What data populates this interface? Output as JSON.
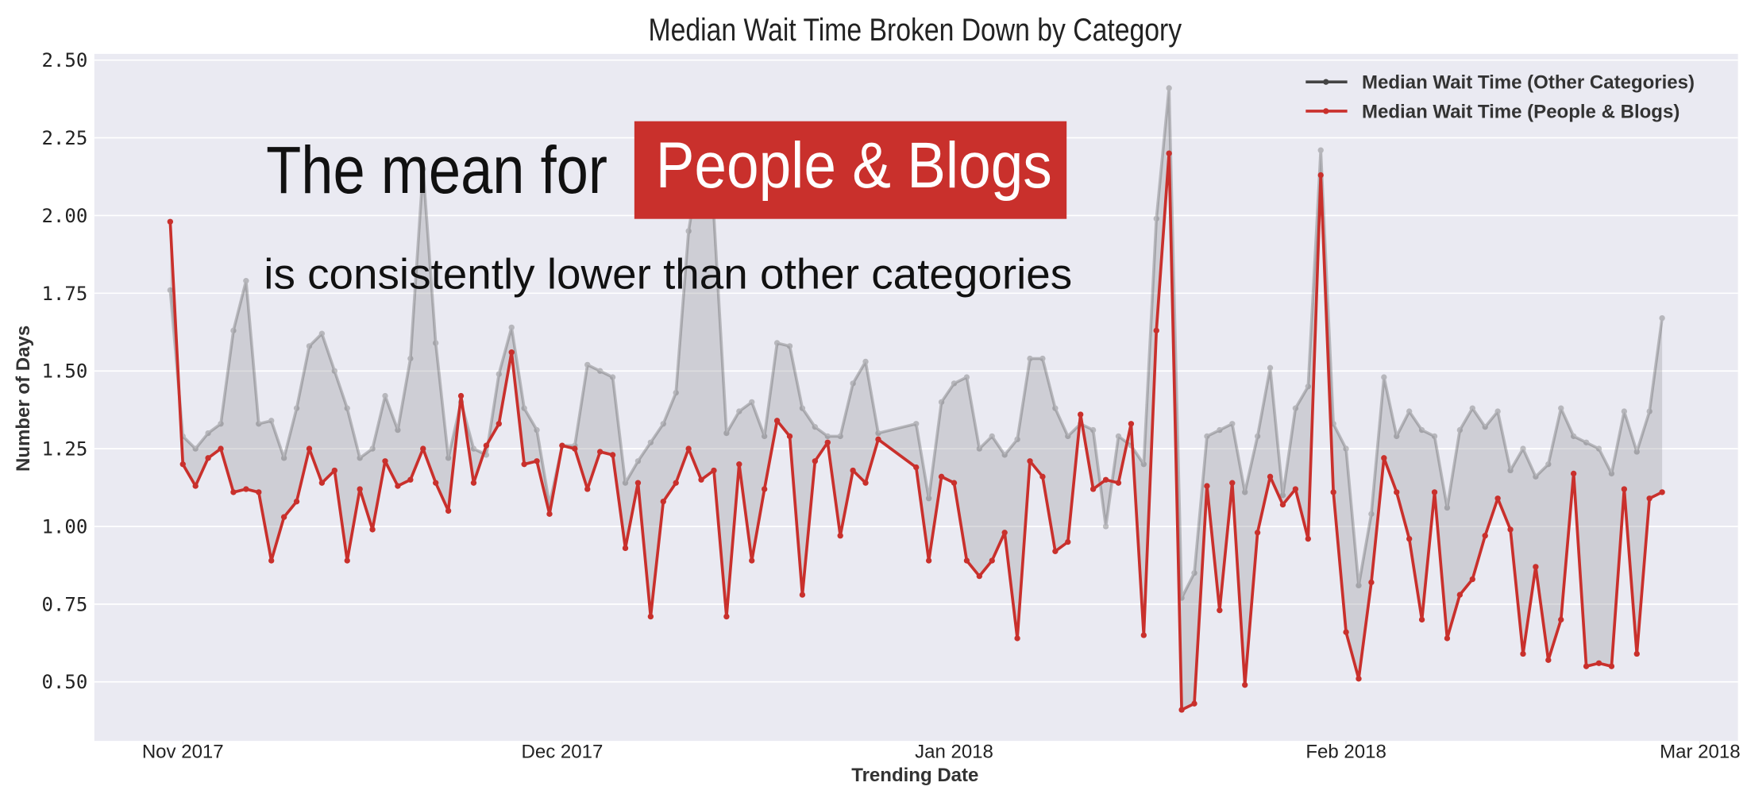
{
  "chart_data": {
    "type": "line",
    "title": "Median Wait Time Broken Down by Category",
    "x_label": "Trending Date",
    "y_label": "Number of Days",
    "annotation_lead": "The mean for",
    "annotation_highlight": "People & Blogs",
    "annotation_tail": "is consistently lower than other categories",
    "highlight_color": "#c9302c",
    "x": [
      -1,
      0,
      1,
      2,
      3,
      4,
      5,
      6,
      7,
      8,
      9,
      10,
      11,
      12,
      13,
      14,
      15,
      16,
      17,
      18,
      19,
      20,
      21,
      22,
      23,
      24,
      25,
      26,
      27,
      28,
      29,
      30,
      31,
      32,
      33,
      34,
      35,
      36,
      37,
      38,
      39,
      40,
      41,
      42,
      43,
      44,
      45,
      46,
      47,
      48,
      49,
      50,
      51,
      52,
      53,
      54,
      55,
      58,
      59,
      60,
      61,
      62,
      63,
      64,
      65,
      66,
      67,
      68,
      69,
      70,
      71,
      72,
      73,
      74,
      75,
      76,
      77,
      78,
      79,
      80,
      81,
      82,
      83,
      84,
      85,
      86,
      87,
      88,
      89,
      90,
      91,
      92,
      93,
      94,
      95,
      96,
      97,
      98,
      99,
      100,
      101,
      102,
      103,
      104,
      105,
      106,
      107,
      108,
      109,
      110,
      111,
      112,
      113,
      114,
      115,
      116,
      117
    ],
    "series": [
      {
        "name": "Median Wait Time (Other Categories)",
        "color": "#444444",
        "line_alpha": 0.3,
        "values": [
          1.76,
          1.29,
          1.25,
          1.3,
          1.33,
          1.63,
          1.79,
          1.33,
          1.34,
          1.22,
          1.38,
          1.58,
          1.62,
          1.5,
          1.38,
          1.22,
          1.25,
          1.42,
          1.31,
          1.54,
          2.15,
          1.59,
          1.22,
          1.4,
          1.25,
          1.23,
          1.49,
          1.64,
          1.38,
          1.31,
          1.07,
          1.26,
          1.26,
          1.52,
          1.5,
          1.48,
          1.14,
          1.21,
          1.27,
          1.33,
          1.43,
          1.95,
          2.2,
          2.0,
          1.3,
          1.37,
          1.4,
          1.29,
          1.59,
          1.58,
          1.38,
          1.32,
          1.29,
          1.29,
          1.46,
          1.53,
          1.3,
          1.33,
          1.09,
          1.4,
          1.46,
          1.48,
          1.25,
          1.29,
          1.23,
          1.28,
          1.54,
          1.54,
          1.38,
          1.29,
          1.33,
          1.31,
          1.0,
          1.29,
          1.26,
          1.2,
          1.99,
          2.41,
          0.77,
          0.85,
          1.29,
          1.31,
          1.33,
          1.11,
          1.29,
          1.51,
          1.1,
          1.38,
          1.45,
          2.21,
          1.33,
          1.25,
          0.81,
          1.04,
          1.48,
          1.29,
          1.37,
          1.31,
          1.29,
          1.06,
          1.31,
          1.38,
          1.32,
          1.37,
          1.18,
          1.25,
          1.16,
          1.2,
          1.38,
          1.29,
          1.27,
          1.25,
          1.17,
          1.37,
          1.24,
          1.37,
          1.67
        ]
      },
      {
        "name": "Median Wait Time (People & Blogs)",
        "color": "#c9302c",
        "line_alpha": 1,
        "values": [
          1.98,
          1.2,
          1.13,
          1.22,
          1.25,
          1.11,
          1.12,
          1.11,
          0.89,
          1.03,
          1.08,
          1.25,
          1.14,
          1.18,
          0.89,
          1.12,
          0.99,
          1.21,
          1.13,
          1.15,
          1.25,
          1.14,
          1.05,
          1.42,
          1.14,
          1.26,
          1.33,
          1.56,
          1.2,
          1.21,
          1.04,
          1.26,
          1.25,
          1.12,
          1.24,
          1.23,
          0.93,
          1.14,
          0.71,
          1.08,
          1.14,
          1.25,
          1.15,
          1.18,
          0.71,
          1.2,
          0.89,
          1.12,
          1.34,
          1.29,
          0.78,
          1.21,
          1.27,
          0.97,
          1.18,
          1.14,
          1.28,
          1.19,
          0.89,
          1.16,
          1.14,
          0.89,
          0.84,
          0.89,
          0.98,
          0.64,
          1.21,
          1.16,
          0.92,
          0.95,
          1.36,
          1.12,
          1.15,
          1.14,
          1.33,
          0.65,
          1.63,
          2.2,
          0.41,
          0.43,
          1.13,
          0.73,
          1.14,
          0.49,
          0.98,
          1.16,
          1.07,
          1.12,
          0.96,
          2.13,
          1.11,
          0.66,
          0.51,
          0.82,
          1.22,
          1.11,
          0.96,
          0.7,
          1.11,
          0.64,
          0.78,
          0.83,
          0.97,
          1.09,
          0.99,
          0.59,
          0.87,
          0.57,
          0.7,
          1.17,
          0.55,
          0.56,
          0.55,
          1.12,
          0.59,
          1.09,
          1.11
        ]
      }
    ],
    "fill_between": true,
    "xlim": [
      -7,
      123
    ],
    "xticks": [
      {
        "value": 0,
        "label": "Nov 2017"
      },
      {
        "value": 30,
        "label": "Dec 2017"
      },
      {
        "value": 61,
        "label": "Jan 2018"
      },
      {
        "value": 92,
        "label": "Feb 2018"
      },
      {
        "value": 120,
        "label": "Mar 2018"
      }
    ],
    "ylim": [
      0.31,
      2.52
    ],
    "yticks": [
      {
        "value": 0.5,
        "label": "0.50"
      },
      {
        "value": 0.75,
        "label": "0.75"
      },
      {
        "value": 1,
        "label": "1.00"
      },
      {
        "value": 1.25,
        "label": "1.25"
      },
      {
        "value": 1.5,
        "label": "1.50"
      },
      {
        "value": 1.75,
        "label": "1.75"
      },
      {
        "value": 2,
        "label": "2.00"
      },
      {
        "value": 2.25,
        "label": "2.25"
      },
      {
        "value": 2.5,
        "label": "2.50"
      }
    ],
    "grid": true,
    "legend": "upper right"
  }
}
